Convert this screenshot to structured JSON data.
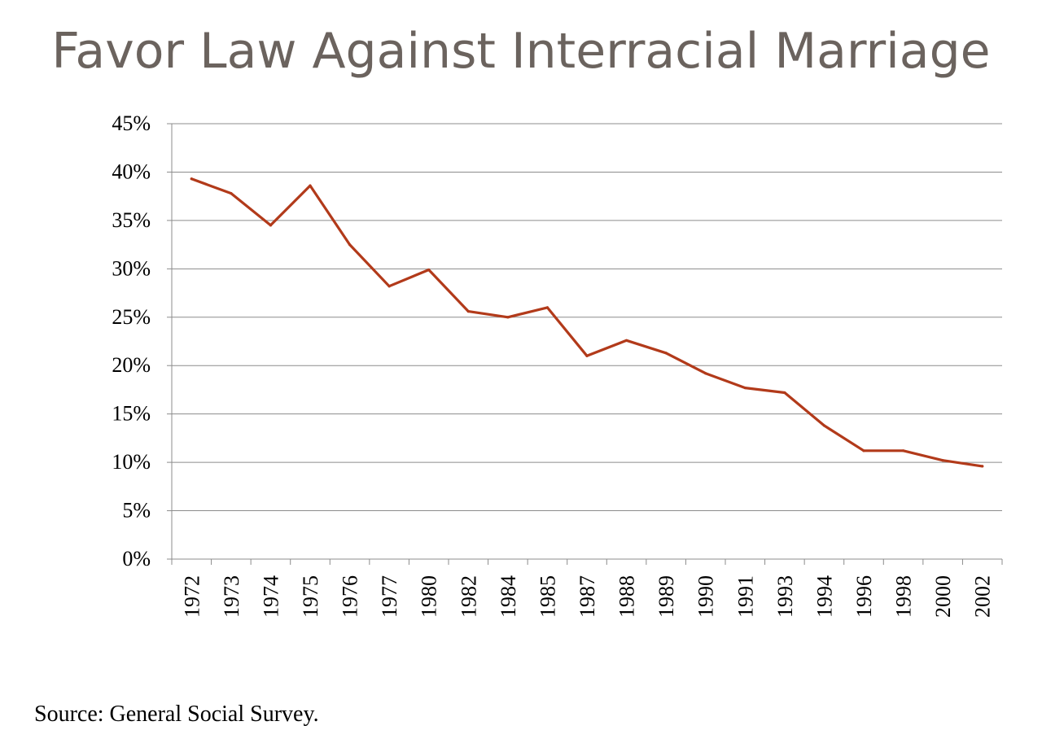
{
  "chart_data": {
    "type": "line",
    "title": "Favor Law Against Interracial Marriage",
    "xlabel": "",
    "ylabel": "",
    "ylim": [
      0,
      45
    ],
    "y_ticks": [
      "0%",
      "5%",
      "10%",
      "15%",
      "20%",
      "25%",
      "30%",
      "35%",
      "40%",
      "45%"
    ],
    "categories": [
      "1972",
      "1973",
      "1974",
      "1975",
      "1976",
      "1977",
      "1980",
      "1982",
      "1984",
      "1985",
      "1987",
      "1988",
      "1989",
      "1990",
      "1991",
      "1993",
      "1994",
      "1996",
      "1998",
      "2000",
      "2002"
    ],
    "series": [
      {
        "values": [
          39.3,
          37.8,
          34.5,
          38.6,
          32.5,
          28.2,
          29.9,
          25.6,
          25.0,
          26.0,
          21.0,
          22.6,
          21.3,
          19.2,
          17.7,
          17.2,
          13.8,
          11.2,
          11.2,
          10.2,
          9.6
        ],
        "color": "#b23a1a"
      }
    ],
    "grid": true,
    "legend": "none"
  },
  "source_note": "Source: General Social Survey."
}
